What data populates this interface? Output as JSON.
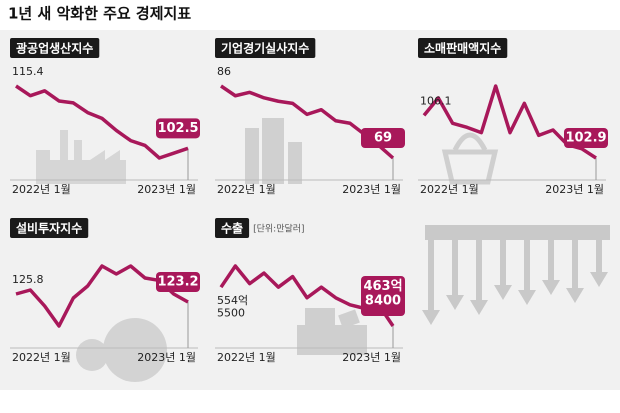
{
  "title": "1년 새 악화한 주요 경제지표",
  "chart_data": [
    {
      "type": "line",
      "title": "광공업생산지수",
      "color": "#a8185a",
      "x": [
        "2022년 1월",
        null,
        null,
        null,
        null,
        null,
        null,
        null,
        null,
        null,
        null,
        null,
        "2023년 1월"
      ],
      "values": [
        115.4,
        113.4,
        114.4,
        112.3,
        111.9,
        109.9,
        108.7,
        106.2,
        104.1,
        103.1,
        100.5,
        101.5,
        102.5
      ]
    },
    {
      "type": "line",
      "title": "기업경기실사지수",
      "color": "#a8185a",
      "x": [
        "2022년 1월",
        null,
        null,
        null,
        null,
        null,
        null,
        null,
        null,
        null,
        null,
        null,
        "2023년 1월"
      ],
      "values": [
        86,
        83.7,
        84.5,
        83.2,
        82.4,
        81.9,
        79.3,
        80.4,
        77.8,
        77.2,
        74.6,
        72,
        69
      ]
    },
    {
      "type": "line",
      "title": "소매판매액지수",
      "color": "#a8185a",
      "x": [
        "2022년 1월",
        null,
        null,
        null,
        null,
        null,
        null,
        null,
        null,
        null,
        null,
        null,
        "2023년 1월"
      ],
      "values": [
        106.1,
        107.4,
        105.5,
        105.2,
        104.8,
        108.3,
        104.8,
        107,
        104.6,
        105,
        103.9,
        103.6,
        102.9
      ]
    },
    {
      "type": "line",
      "title": "설비투자지수",
      "color": "#a8185a",
      "x": [
        "2022년 1월",
        null,
        null,
        null,
        null,
        null,
        null,
        null,
        null,
        null,
        null,
        null,
        "2023년 1월"
      ],
      "values": [
        125.8,
        127.1,
        121.9,
        115.4,
        124.5,
        128.4,
        134.9,
        132.3,
        134.9,
        131,
        130.2,
        125.8,
        123.2
      ]
    },
    {
      "type": "line",
      "title": "수출",
      "subtitle": "[단위:만달러]",
      "color": "#a8185a",
      "x": [
        "2022년 1월",
        null,
        null,
        null,
        null,
        null,
        null,
        null,
        null,
        null,
        null,
        null,
        "2023년 1월"
      ],
      "values": [
        5545500,
        6040000,
        5628000,
        5875000,
        5545500,
        5793000,
        5298000,
        5545500,
        5298000,
        5133000,
        5050000,
        5133000,
        4638400
      ],
      "value_labels": [
        "554억\n5500",
        null,
        null,
        null,
        null,
        null,
        null,
        null,
        null,
        null,
        null,
        null,
        "463억\n8400"
      ]
    }
  ]
}
